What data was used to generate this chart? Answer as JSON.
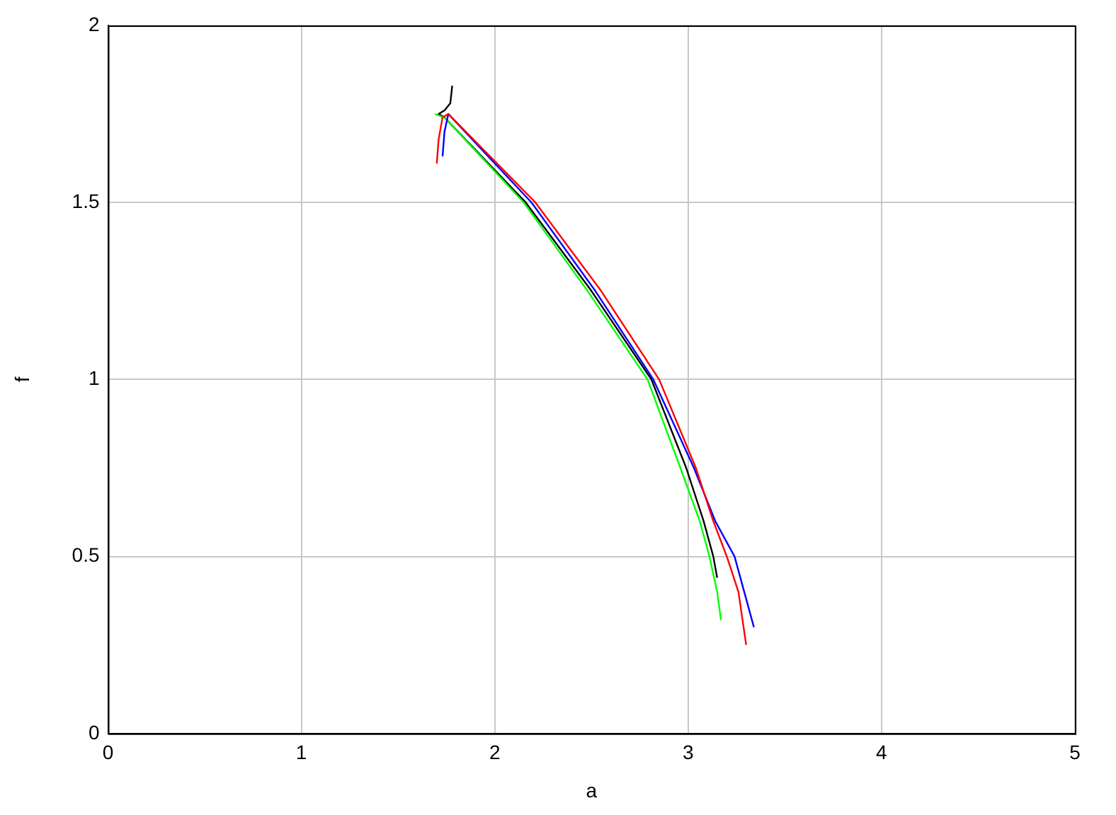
{
  "chart_data": {
    "type": "line",
    "xlabel": "a",
    "ylabel": "f",
    "xlim": [
      0,
      5
    ],
    "ylim": [
      0,
      2
    ],
    "xticks": [
      0,
      1,
      2,
      3,
      4,
      5
    ],
    "yticks": [
      0,
      0.5,
      1,
      1.5,
      2
    ],
    "grid": true,
    "legend": false,
    "marker": "none",
    "line_style": "solid",
    "series": [
      {
        "color": "#ff0000",
        "x": [
          1.7,
          1.71,
          1.73,
          1.76,
          2.21,
          2.55,
          2.85,
          3.04,
          3.13,
          3.2,
          3.26,
          3.3
        ],
        "values": [
          1.61,
          1.68,
          1.74,
          1.75,
          1.5,
          1.25,
          1.0,
          0.75,
          0.6,
          0.5,
          0.4,
          0.25
        ]
      },
      {
        "color": "#0000ff",
        "x": [
          1.73,
          1.74,
          1.76,
          2.19,
          2.52,
          2.82,
          3.03,
          3.14,
          3.24,
          3.29,
          3.34
        ],
        "values": [
          1.63,
          1.7,
          1.75,
          1.5,
          1.25,
          1.0,
          0.75,
          0.6,
          0.5,
          0.4,
          0.3
        ]
      },
      {
        "color": "#00ff00",
        "x": [
          1.69,
          1.74,
          2.15,
          2.48,
          2.79,
          2.96,
          3.06,
          3.11,
          3.15,
          3.17
        ],
        "values": [
          1.75,
          1.74,
          1.5,
          1.25,
          1.0,
          0.75,
          0.6,
          0.5,
          0.4,
          0.32
        ]
      },
      {
        "color": "#000000",
        "x": [
          1.78,
          1.77,
          1.74,
          1.71,
          1.74,
          2.16,
          2.5,
          2.81,
          2.99,
          3.08,
          3.13,
          3.15
        ],
        "values": [
          1.83,
          1.78,
          1.76,
          1.75,
          1.74,
          1.5,
          1.25,
          1.0,
          0.75,
          0.6,
          0.5,
          0.44
        ]
      }
    ]
  }
}
